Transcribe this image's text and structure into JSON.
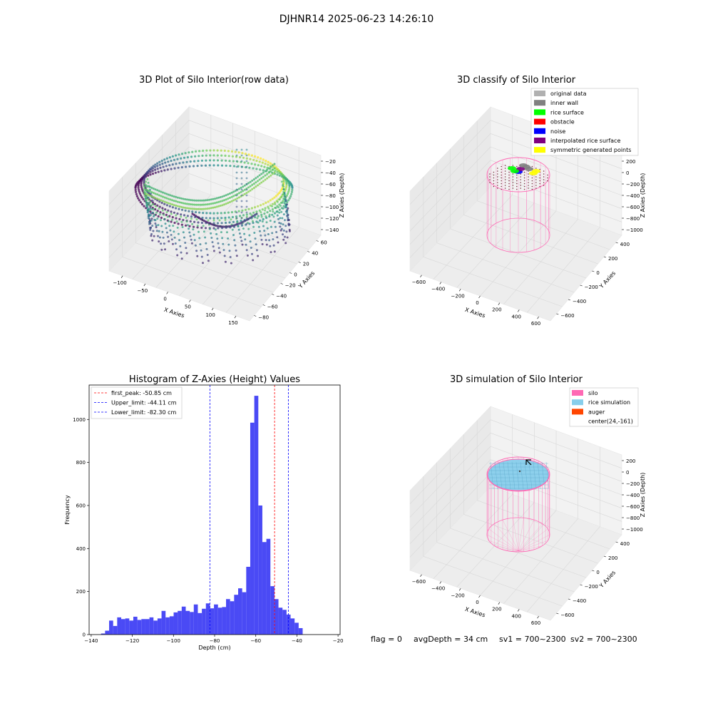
{
  "figure_title": "DJHNR14 2025-06-23 14:26:10",
  "status": {
    "flag": "flag = 0",
    "avg_depth": "avgDepth = 34 cm",
    "sv1": "sv1 = 700~2300",
    "sv2": "sv2 = 700~2300"
  },
  "colors": {
    "bar": "#4a4af5",
    "silo": "#ff69b4",
    "rice": "#87ceeb",
    "auger": "#ff4500",
    "peak_line": "#ff0000",
    "limit_line": "#0000ff"
  },
  "chart_data": [
    {
      "id": "raw",
      "type": "scatter",
      "title": "3D Plot of Silo Interior(row data)",
      "xlabel": "X Axies",
      "ylabel": "Y Axies",
      "zlabel": "Z Axies (Depth)",
      "x_ticks": [
        "−100",
        "−50",
        "0",
        "50",
        "100",
        "150"
      ],
      "y_ticks": [
        "60",
        "40",
        "20",
        "0",
        "−20",
        "−40",
        "−60",
        "−80"
      ],
      "z_ticks": [
        "−20",
        "−40",
        "−60",
        "−80",
        "−100",
        "−120",
        "−140"
      ],
      "xlim": [
        -135,
        150
      ],
      "ylim": [
        -85,
        65
      ],
      "zlim": [
        -145,
        -15
      ]
    },
    {
      "id": "classify",
      "type": "scatter",
      "title": "3D classify of Silo Interior",
      "xlabel": "X Axies",
      "ylabel": "Y Axies",
      "zlabel": "Z Axies (Depth)",
      "x_ticks": [
        "−600",
        "−400",
        "−200",
        "0",
        "200",
        "400",
        "600"
      ],
      "y_ticks": [
        "400",
        "200",
        "0",
        "−200",
        "−400",
        "−600"
      ],
      "z_ticks": [
        "200",
        "0",
        "−200",
        "−400",
        "−600",
        "−800",
        "−1000"
      ],
      "legend": [
        {
          "label": "original data",
          "color": "#b0b0b0"
        },
        {
          "label": "inner wall",
          "color": "#808080"
        },
        {
          "label": "rice surface",
          "color": "#00ff00"
        },
        {
          "label": "obstacle",
          "color": "#ff0000"
        },
        {
          "label": "noise",
          "color": "#0000ff"
        },
        {
          "label": "interpolated rice surface",
          "color": "#800080"
        },
        {
          "label": "symmetric generated points",
          "color": "#ffff00"
        }
      ]
    },
    {
      "id": "histogram",
      "type": "bar",
      "title": "Histogram of Z-Axies (Height) Values",
      "xlabel": "Depth (cm)",
      "ylabel": "Frequency",
      "xlim": [
        -141,
        -19
      ],
      "ylim": [
        0,
        1160
      ],
      "x_ticks": [
        -140,
        -120,
        -100,
        -80,
        -60,
        -40,
        -20
      ],
      "y_ticks": [
        0,
        200,
        400,
        600,
        800,
        1000
      ],
      "bin_start": -135.2,
      "bin_width": 1.96,
      "values": [
        5,
        18,
        65,
        40,
        80,
        72,
        75,
        65,
        83,
        68,
        72,
        72,
        80,
        65,
        75,
        110,
        80,
        85,
        103,
        110,
        130,
        110,
        105,
        140,
        100,
        120,
        145,
        122,
        140,
        125,
        128,
        165,
        155,
        185,
        215,
        197,
        315,
        985,
        1110,
        600,
        430,
        445,
        225,
        165,
        125,
        115,
        93,
        75,
        55,
        30
      ],
      "lines": [
        {
          "label": "first_peak: -50.85 cm",
          "x": -50.85,
          "color": "#ff0000"
        },
        {
          "label": "Upper_limit: -44.11 cm",
          "x": -44.11,
          "color": "#0000ff"
        },
        {
          "label": "Lower_limit: -82.30 cm",
          "x": -82.3,
          "color": "#0000ff"
        }
      ]
    },
    {
      "id": "simulation",
      "type": "scatter",
      "title": "3D simulation of Silo Interior",
      "xlabel": "X Axies",
      "ylabel": "Y Axies",
      "zlabel": "Z Axies (Depth)",
      "x_ticks": [
        "−600",
        "−400",
        "−200",
        "0",
        "200",
        "400",
        "600"
      ],
      "y_ticks": [
        "400",
        "200",
        "0",
        "−200",
        "−400",
        "−600"
      ],
      "z_ticks": [
        "200",
        "0",
        "−200",
        "−400",
        "−600",
        "−800",
        "−1000"
      ],
      "legend": [
        {
          "label": "silo",
          "color": "#ff69b4"
        },
        {
          "label": "rice simulation",
          "color": "#87ceeb"
        },
        {
          "label": "auger",
          "color": "#ff4500"
        },
        {
          "label": "center(24,-161)",
          "color": "none"
        }
      ]
    }
  ]
}
